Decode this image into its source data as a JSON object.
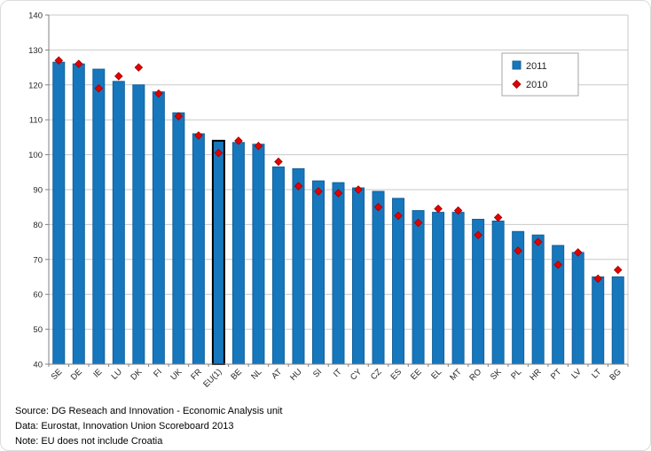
{
  "chart_data": {
    "type": "bar",
    "title": "",
    "xlabel": "",
    "ylabel": "",
    "categories": [
      "SE",
      "DE",
      "IE",
      "LU",
      "DK",
      "FI",
      "UK",
      "FR",
      "EU(1)",
      "BE",
      "NL",
      "AT",
      "HU",
      "SI",
      "IT",
      "CY",
      "CZ",
      "ES",
      "EE",
      "EL",
      "MT",
      "RO",
      "SK",
      "PL",
      "HR",
      "PT",
      "LV",
      "LT",
      "BG"
    ],
    "series": [
      {
        "name": "2011",
        "type": "bar",
        "color": "#1777bd",
        "values": [
          126.5,
          126,
          124.5,
          121,
          120,
          118,
          112,
          106,
          104,
          103.5,
          103,
          96.5,
          96,
          92.5,
          92,
          90.5,
          89.5,
          87.5,
          84,
          83.5,
          83.5,
          81.5,
          81,
          78,
          77,
          74,
          72,
          65,
          65
        ]
      },
      {
        "name": "2010",
        "type": "scatter",
        "marker": "diamond",
        "color": "#e40000",
        "values": [
          127,
          126,
          119,
          122.5,
          125,
          117.5,
          111,
          105.5,
          100.5,
          104,
          102.5,
          98,
          91,
          89.5,
          89,
          90,
          85,
          82.5,
          80.5,
          84.5,
          84,
          77,
          82,
          72.5,
          75,
          68.5,
          72,
          64.5,
          67
        ]
      }
    ],
    "ylim": [
      40,
      140
    ],
    "ytick_step": 10,
    "grid": true,
    "legend_position": "top-right",
    "highlight_category": "EU(1)",
    "highlight_stroke": "#000000"
  },
  "footer": {
    "source": "Source: DG Reseach and Innovation - Economic Analysis unit",
    "data": "Data: Eurostat, Innovation Union Scoreboard 2013",
    "note": "Note: EU does not include Croatia"
  }
}
